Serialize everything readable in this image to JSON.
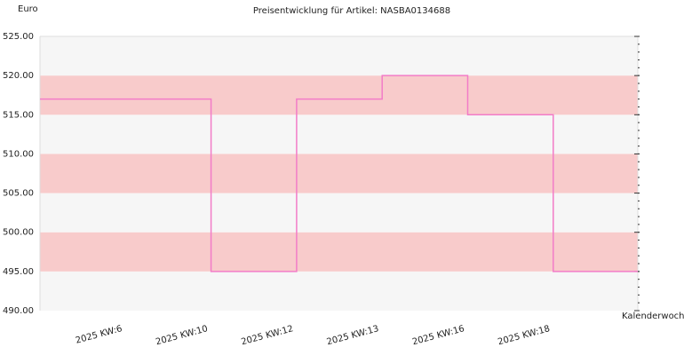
{
  "chart_data": {
    "type": "step",
    "title": "Preisentwicklung für Artikel: NASBA0134688",
    "y_label": "Euro",
    "x_label": "Kalenderwoche",
    "categories": [
      "2025 KW:6",
      "2025 KW:10",
      "2025 KW:12",
      "2025 KW:13",
      "2025 KW:16",
      "2025 KW:18"
    ],
    "values": [
      517,
      495,
      517,
      520,
      515,
      495
    ],
    "color": "#f27cc8",
    "ylim": [
      490,
      525
    ],
    "yticks": [
      {
        "value": 490,
        "label": "490.00"
      },
      {
        "value": 495,
        "label": "495.00"
      },
      {
        "value": 500,
        "label": "500.00"
      },
      {
        "value": 505,
        "label": "505.00"
      },
      {
        "value": 510,
        "label": "510.00"
      },
      {
        "value": 515,
        "label": "515.00"
      },
      {
        "value": 520,
        "label": "520.00"
      },
      {
        "value": 525,
        "label": "525.00"
      }
    ],
    "band_colors": [
      "#f6f6f6",
      "#f8cbcb"
    ]
  }
}
